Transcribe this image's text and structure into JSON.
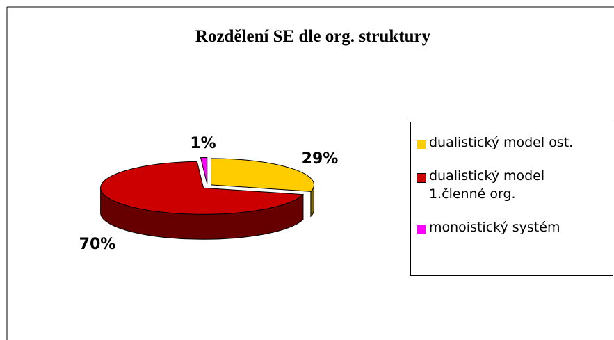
{
  "chart_data": {
    "type": "pie3d",
    "title": "Rozdělení SE dle org. struktury",
    "categories": [
      "dualistický model ost.",
      "dualistický model 1.členné org.",
      "monoistický systém"
    ],
    "values": [
      29,
      70,
      1
    ],
    "value_labels": [
      "29%",
      "70%",
      "1%"
    ],
    "colors": [
      "#ffcc00",
      "#cc0000",
      "#ff00ff"
    ],
    "legend": "right"
  }
}
